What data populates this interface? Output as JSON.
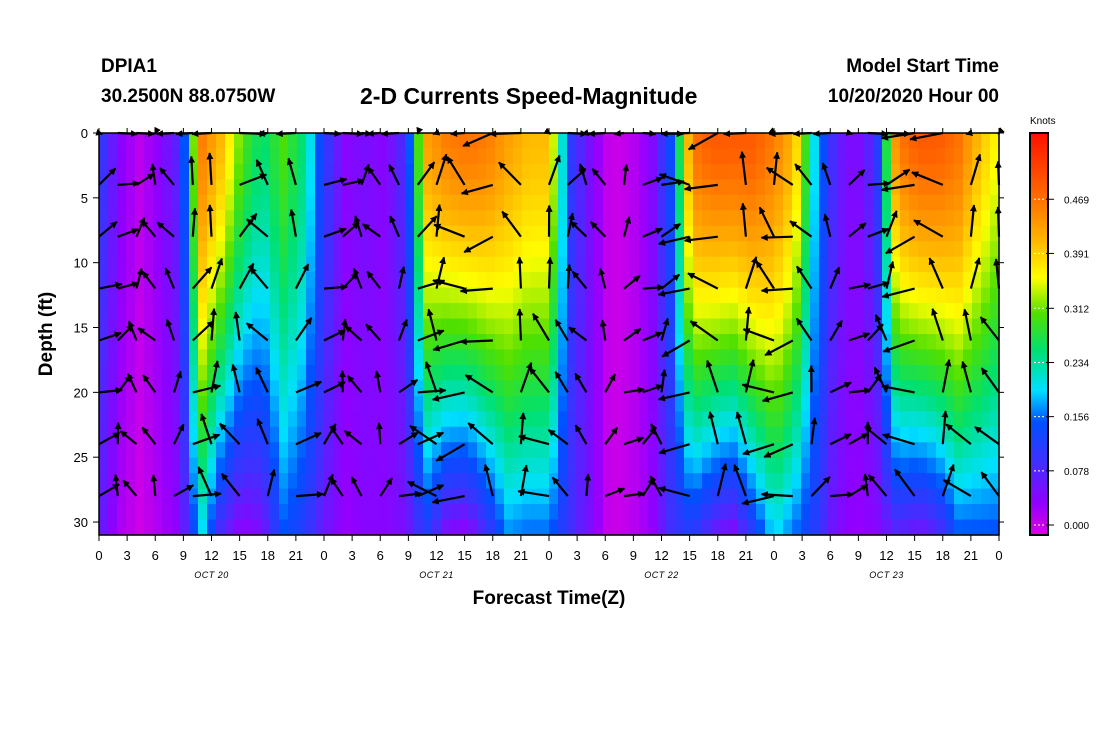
{
  "header": {
    "station_id": "DPIA1",
    "coords": "30.2500N 88.0750W",
    "title": "2-D Currents Speed-Magnitude",
    "start_label": "Model Start Time",
    "start_value": "10/20/2020 Hour 00"
  },
  "chart_data": {
    "type": "heatmap",
    "title": "2-D Currents Speed-Magnitude",
    "xlabel": "Forecast Time(Z)",
    "ylabel": "Depth (ft)",
    "colorbar_label": "Knots",
    "colorbar_ticks": [
      "0.000",
      "0.078",
      "0.156",
      "0.234",
      "0.312",
      "0.391",
      "0.469"
    ],
    "value_range": [
      0.0,
      0.55
    ],
    "x_range_hours": [
      0,
      96
    ],
    "y_range_ft": [
      0,
      31
    ],
    "x_ticks": [
      "0",
      "3",
      "6",
      "9",
      "12",
      "15",
      "18",
      "21",
      "0",
      "3",
      "6",
      "9",
      "12",
      "15",
      "18",
      "21",
      "0",
      "3",
      "6",
      "9",
      "12",
      "15",
      "18",
      "21",
      "0",
      "3",
      "6",
      "9",
      "12",
      "15",
      "18",
      "21",
      "0"
    ],
    "y_ticks": [
      "0",
      "5",
      "10",
      "15",
      "20",
      "25",
      "30"
    ],
    "day_labels": [
      {
        "label": "OCT 20",
        "center_hour": 12
      },
      {
        "label": "OCT 21",
        "center_hour": 36
      },
      {
        "label": "OCT 22",
        "center_hour": 60
      },
      {
        "label": "OCT 23",
        "center_hour": 84
      }
    ],
    "speed_profile_surface": [
      0.12,
      0.05,
      0.02,
      0.05,
      0.09,
      0.45,
      0.4,
      0.3,
      0.25,
      0.3,
      0.25,
      0.12,
      0.05,
      0.06,
      0.05,
      0.1,
      0.42,
      0.45,
      0.46,
      0.45,
      0.42,
      0.4,
      0.4,
      0.12,
      0.06,
      0.01,
      0.02,
      0.05,
      0.15,
      0.46,
      0.48,
      0.48,
      0.48,
      0.45,
      0.4,
      0.2,
      0.08,
      0.05,
      0.1,
      0.45,
      0.48,
      0.48,
      0.46,
      0.4,
      0.35
    ],
    "speed_profile_bottom": [
      0.08,
      0.03,
      0.01,
      0.03,
      0.05,
      0.2,
      0.08,
      0.04,
      0.06,
      0.15,
      0.12,
      0.07,
      0.04,
      0.05,
      0.05,
      0.06,
      0.12,
      0.05,
      0.04,
      0.1,
      0.17,
      0.16,
      0.16,
      0.1,
      0.06,
      0.01,
      0.02,
      0.04,
      0.1,
      0.12,
      0.07,
      0.05,
      0.12,
      0.2,
      0.16,
      0.12,
      0.06,
      0.04,
      0.05,
      0.08,
      0.06,
      0.08,
      0.15,
      0.15,
      0.15
    ],
    "vector_depths_ft": [
      0,
      4,
      8,
      12,
      16,
      20,
      24,
      28
    ],
    "vector_hours": [
      0,
      2,
      4,
      6,
      8,
      10,
      12,
      15,
      18,
      21,
      24,
      26,
      28,
      30,
      32,
      34,
      36,
      39,
      42,
      45,
      48,
      50,
      52,
      54,
      56,
      58,
      60,
      63,
      66,
      69,
      72,
      74,
      76,
      78,
      80,
      82,
      84,
      87,
      90,
      93,
      96
    ]
  }
}
